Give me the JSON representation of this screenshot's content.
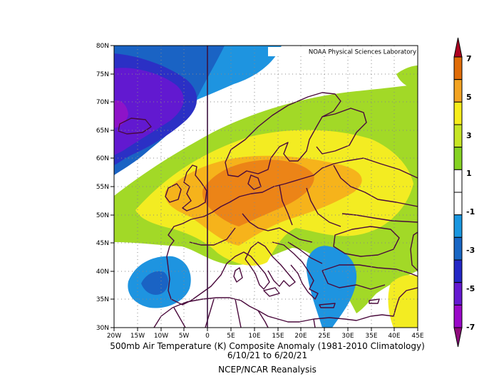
{
  "credit": "NOAA Physical Sciences Laboratory",
  "caption": {
    "line1": "500mb Air Temperature (K) Composite Anomaly (1981-2010 Climatology)",
    "line2": "6/10/21   to 6/20/21",
    "line3": "NCEP/NCAR Reanalysis"
  },
  "map": {
    "lon_range": [
      -20,
      45
    ],
    "lat_range": [
      30,
      80
    ],
    "gridlines": "dotted",
    "lat_labels": [
      "80N",
      "75N",
      "70N",
      "65N",
      "60N",
      "55N",
      "50N",
      "45N",
      "40N",
      "35N",
      "30N"
    ],
    "lon_labels": [
      "20W",
      "15W",
      "10W",
      "5W",
      "0",
      "5E",
      "10E",
      "15E",
      "20E",
      "25E",
      "30E",
      "35E",
      "40E",
      "45E"
    ]
  },
  "colorbar": {
    "tick_labels": [
      "7",
      "5",
      "3",
      "1",
      "-1",
      "-3",
      "-5",
      "-7"
    ],
    "colors": [
      "#ad0021",
      "#e06c07",
      "#f3a321",
      "#f7ed1a",
      "#c6e524",
      "#85d222",
      "#ffffff",
      "#ffffff",
      "#1a97e0",
      "#1866c4",
      "#2327c6",
      "#6519d1",
      "#9a08c9",
      "#8e0b7c"
    ]
  },
  "anomaly_colors": {
    "green": "#a2d927",
    "yellow": "#f3ec22",
    "orange_light": "#f6b31b",
    "orange": "#ec8417",
    "blue_light": "#1e94e0",
    "blue": "#1a63c4",
    "indigo": "#2b30c5",
    "violet": "#6219d0",
    "purple": "#8e13c8"
  }
}
